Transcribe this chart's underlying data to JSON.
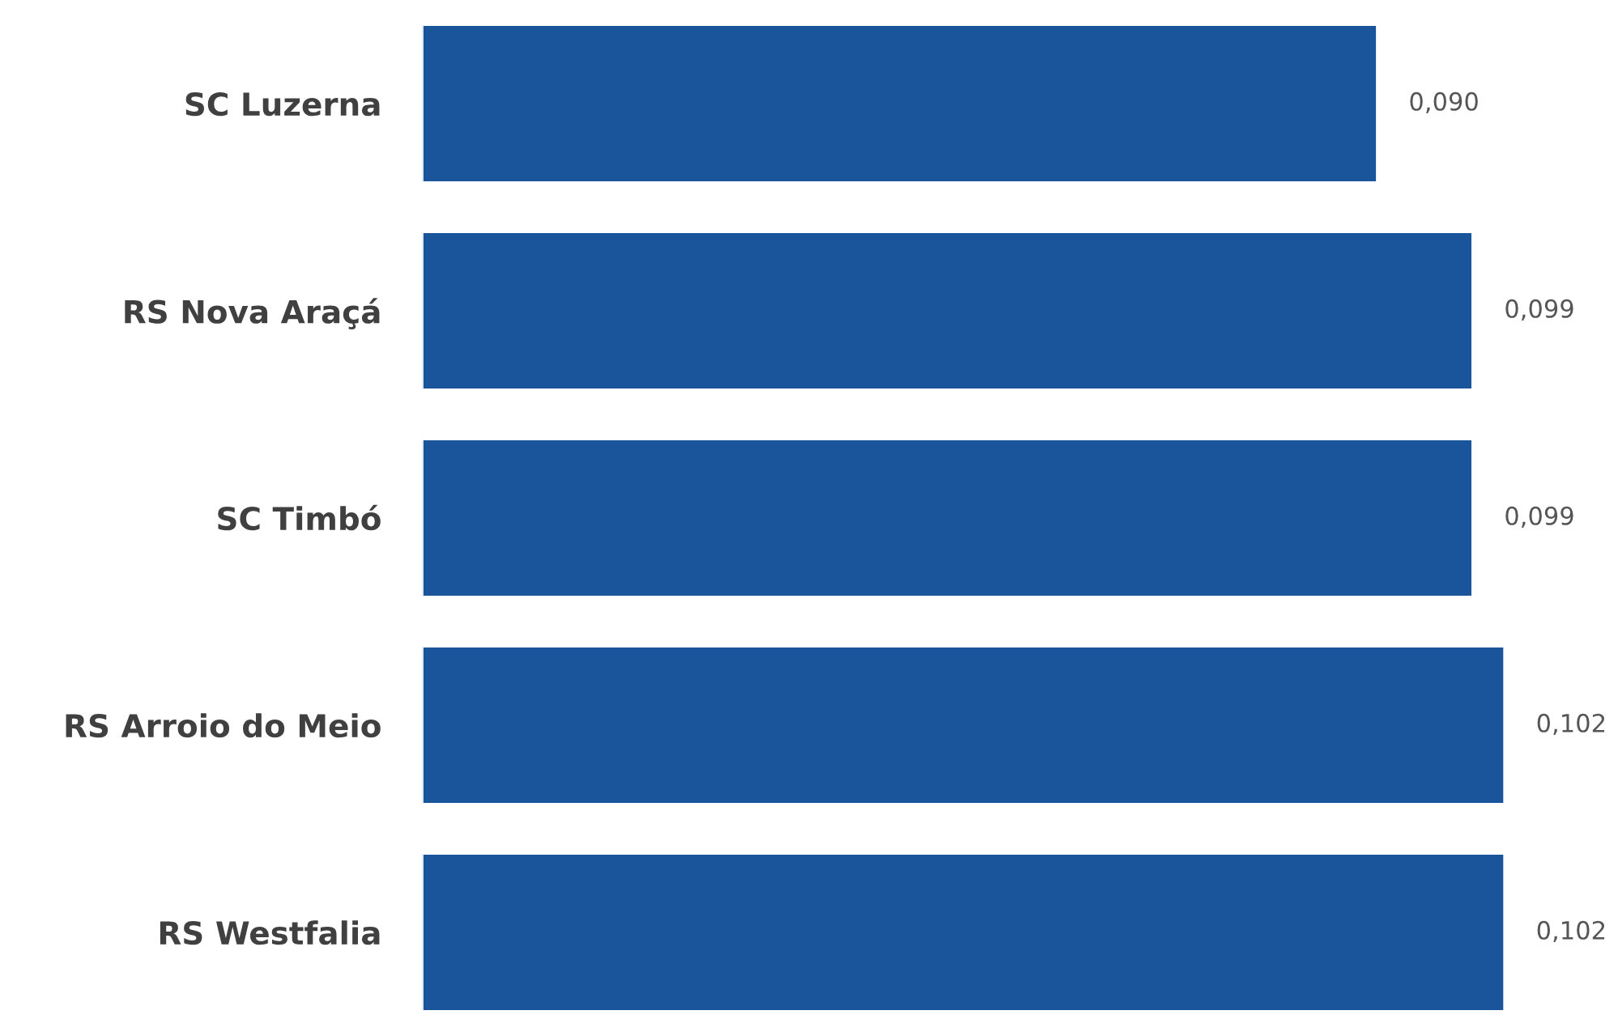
{
  "chart_data": {
    "type": "bar",
    "orientation": "horizontal",
    "categories": [
      "SC Luzerna",
      "RS Nova Araçá",
      "SC Timbó",
      "RS Arroio do Meio",
      "RS Westfalia"
    ],
    "values": [
      0.09,
      0.099,
      0.099,
      0.102,
      0.102
    ],
    "value_labels": [
      "0,090",
      "0,099",
      "0,099",
      "0,102",
      "0,102"
    ],
    "color": "#1a549b",
    "grid": false,
    "legend": false,
    "tick_labels": "y"
  }
}
